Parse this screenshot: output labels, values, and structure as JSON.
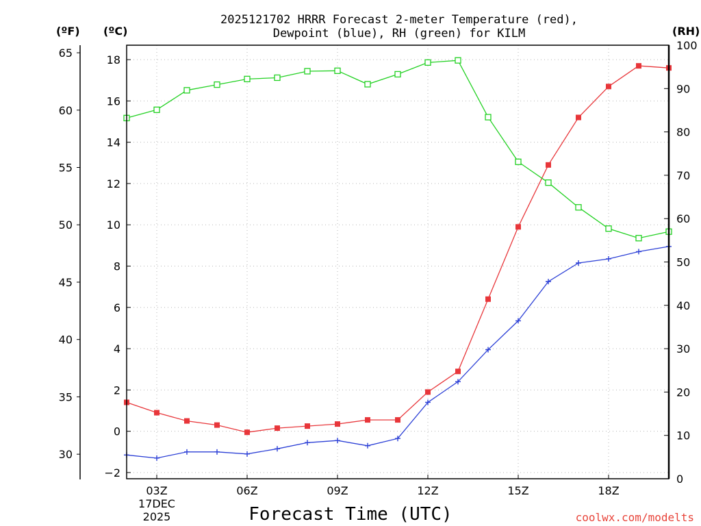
{
  "chart_data": {
    "type": "line",
    "title": "2025121702 HRRR Forecast 2-meter Temperature (red),",
    "subtitle": "Dewpoint (blue), RH (green) for KILM",
    "xlabel": "Forecast Time (UTC)",
    "credit": "coolwx.com/modelts",
    "units": {
      "fahrenheit": "(ºF)",
      "celsius": "(ºC)",
      "rh": "(RH)"
    },
    "x_hours": [
      2,
      3,
      4,
      5,
      6,
      7,
      8,
      9,
      10,
      11,
      12,
      13,
      14,
      15,
      16,
      17,
      18,
      19,
      20
    ],
    "xlim": [
      2,
      20
    ],
    "x_ticks": [
      {
        "hour": 3,
        "lines": [
          "03Z",
          "17DEC",
          "2025"
        ]
      },
      {
        "hour": 6,
        "lines": [
          "06Z"
        ]
      },
      {
        "hour": 9,
        "lines": [
          "09Z"
        ]
      },
      {
        "hour": 12,
        "lines": [
          "12Z"
        ]
      },
      {
        "hour": 15,
        "lines": [
          "15Z"
        ]
      },
      {
        "hour": 18,
        "lines": [
          "18Z"
        ]
      }
    ],
    "y_celsius": {
      "lim": [
        -2.3,
        18.7
      ],
      "ticks": [
        -2,
        0,
        2,
        4,
        6,
        8,
        10,
        12,
        14,
        16,
        18
      ]
    },
    "y_fahrenheit": {
      "ticks": [
        30,
        35,
        40,
        45,
        50,
        55,
        60,
        65
      ]
    },
    "y_rh": {
      "lim": [
        0,
        100
      ],
      "ticks": [
        0,
        10,
        20,
        30,
        40,
        50,
        60,
        70,
        80,
        90,
        100
      ]
    },
    "series": [
      {
        "name": "Temperature",
        "unit": "C",
        "color": "#e8363a",
        "marker": "filled-square",
        "values": [
          1.4,
          0.9,
          0.5,
          0.3,
          -0.05,
          0.15,
          0.25,
          0.35,
          0.55,
          0.55,
          1.9,
          2.9,
          6.4,
          9.9,
          12.9,
          15.2,
          16.7,
          17.7,
          17.6
        ]
      },
      {
        "name": "Dewpoint",
        "unit": "C",
        "color": "#2b3fd6",
        "marker": "plus",
        "values": [
          -1.15,
          -1.3,
          -1.0,
          -1.0,
          -1.1,
          -0.85,
          -0.55,
          -0.45,
          -0.7,
          -0.35,
          1.4,
          2.4,
          3.95,
          5.35,
          7.25,
          8.15,
          8.35,
          8.7,
          8.95
        ]
      },
      {
        "name": "RH",
        "unit": "%",
        "color": "#22d122",
        "marker": "open-square",
        "values": [
          83.2,
          85.1,
          89.6,
          90.9,
          92.2,
          92.5,
          94.0,
          94.1,
          91.0,
          93.3,
          96.0,
          96.5,
          83.4,
          73.1,
          68.3,
          62.6,
          57.7,
          55.5,
          57.0
        ]
      }
    ]
  }
}
